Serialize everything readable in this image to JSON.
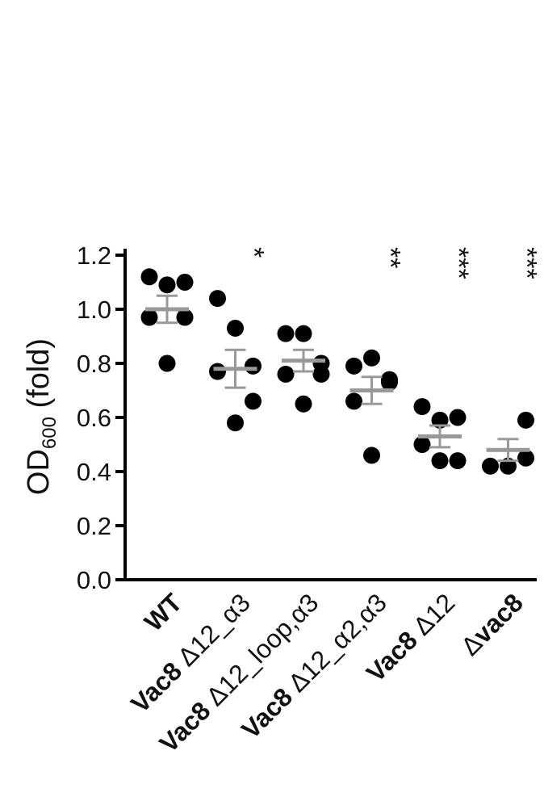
{
  "chart_data": {
    "type": "scatter",
    "title": "",
    "ylabel": {
      "main": "OD",
      "sub": "600",
      "suffix": " (fold)"
    },
    "xlabel": "",
    "ylim": [
      0,
      1.2
    ],
    "yticks": [
      "0.0",
      "0.2",
      "0.4",
      "0.6",
      "0.8",
      "1.0",
      "1.2"
    ],
    "grid": false,
    "colors": {
      "points": "#000000",
      "mean_bar": "#999999",
      "axis": "#000000"
    },
    "categories": [
      {
        "parts": [
          {
            "text": "WT",
            "bold": true
          }
        ],
        "values": [
          1.12,
          1.09,
          1.1,
          0.97,
          0.97,
          0.8
        ],
        "mean": 1.0,
        "sem": 0.05,
        "significance": ""
      },
      {
        "parts": [
          {
            "text": "Vac8",
            "bold": true
          },
          {
            "text": " Δ12_α3",
            "bold": false
          }
        ],
        "values": [
          1.04,
          0.93,
          0.79,
          0.77,
          0.66,
          0.58
        ],
        "mean": 0.78,
        "sem": 0.07,
        "significance": "*"
      },
      {
        "parts": [
          {
            "text": "Vac8",
            "bold": true
          },
          {
            "text": " Δ12_loop,α3",
            "bold": false
          }
        ],
        "values": [
          0.91,
          0.91,
          0.8,
          0.76,
          0.76,
          0.65
        ],
        "mean": 0.81,
        "sem": 0.04,
        "significance": ""
      },
      {
        "parts": [
          {
            "text": "Vac8",
            "bold": true
          },
          {
            "text": " Δ12_α2,α3",
            "bold": false
          }
        ],
        "values": [
          0.79,
          0.82,
          0.74,
          0.66,
          0.73,
          0.46
        ],
        "mean": 0.7,
        "sem": 0.05,
        "significance": "**"
      },
      {
        "parts": [
          {
            "text": "Vac8",
            "bold": true
          },
          {
            "text": " Δ12",
            "bold": false
          }
        ],
        "values": [
          0.64,
          0.59,
          0.6,
          0.5,
          0.44,
          0.44
        ],
        "mean": 0.53,
        "sem": 0.04,
        "significance": "***"
      },
      {
        "parts": [
          {
            "text": "Δ",
            "bold": false
          },
          {
            "text": "vac8",
            "bold": true
          }
        ],
        "values": [
          0.59,
          0.45,
          0.42,
          0.42
        ],
        "mean": 0.48,
        "sem": 0.04,
        "significance": "***"
      }
    ]
  }
}
